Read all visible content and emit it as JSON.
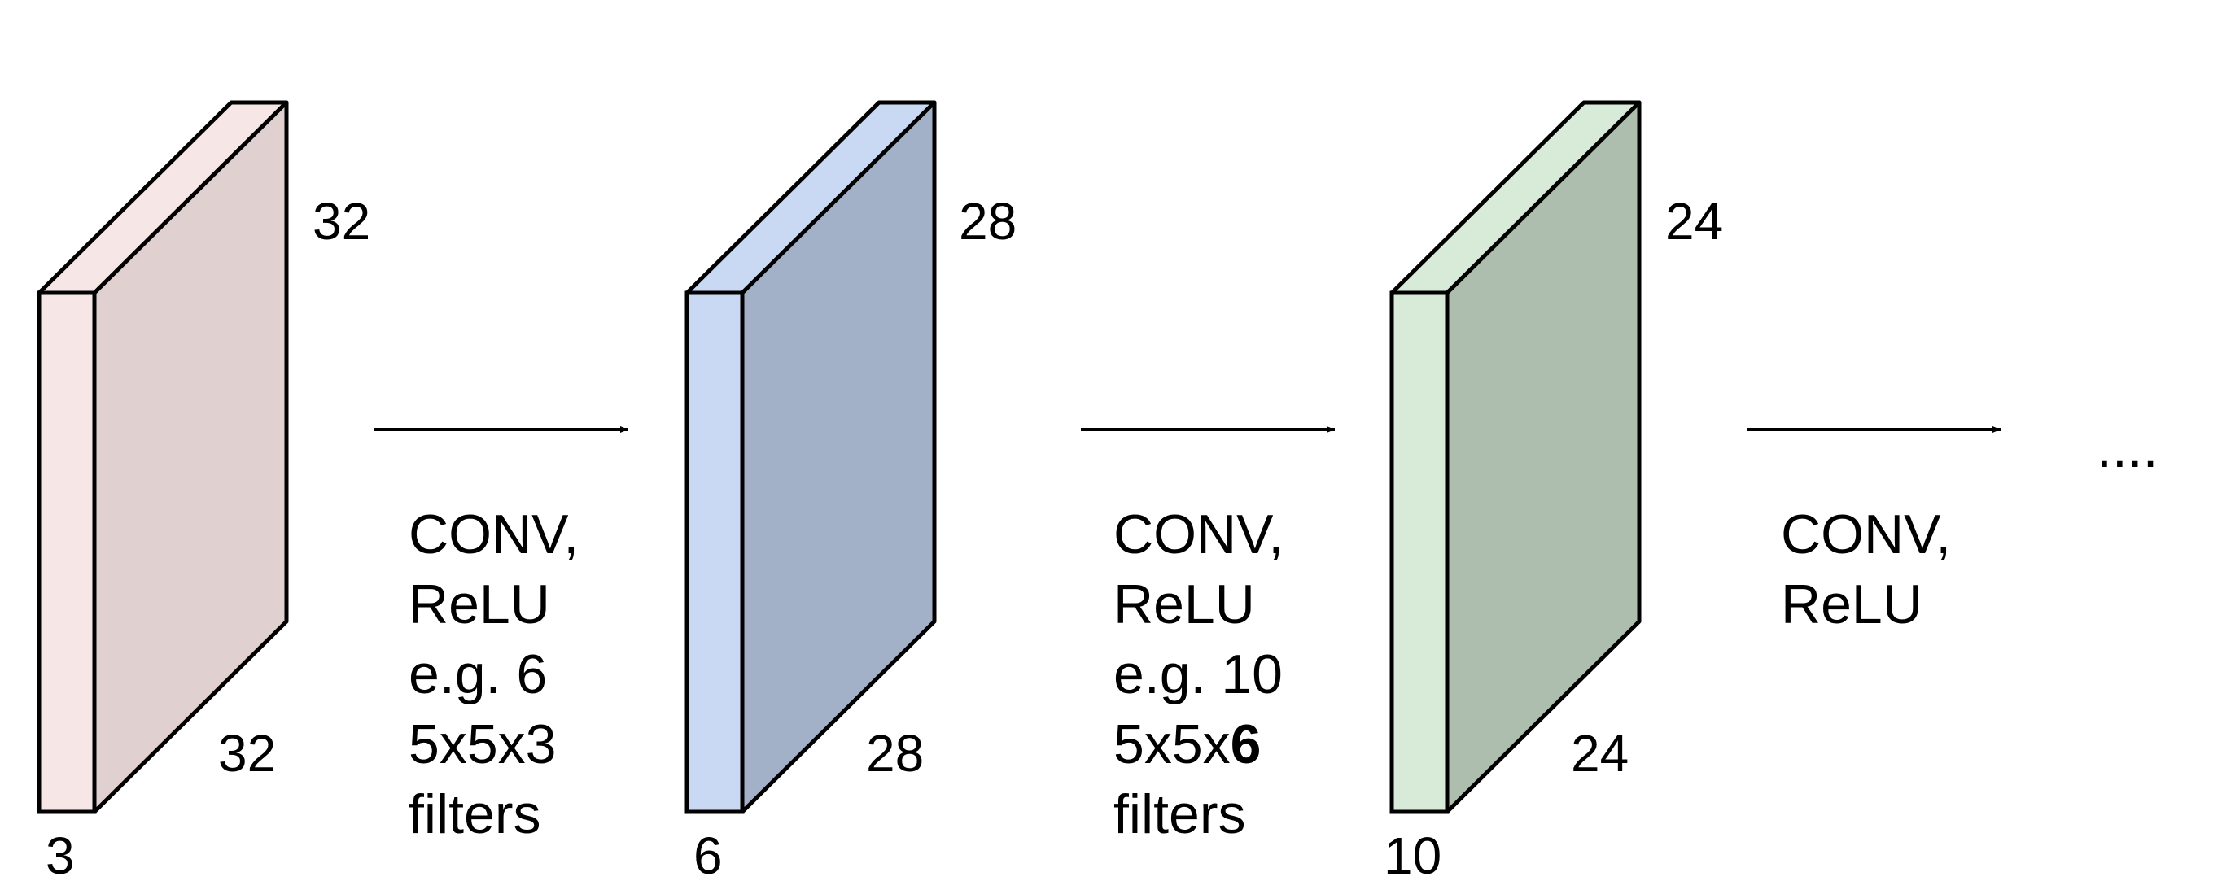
{
  "colors": {
    "volume1_front": "#F6E6E6",
    "volume1_side": "#E0D0D0",
    "volume2_front": "#C9D9F4",
    "volume2_side": "#A2B0C8",
    "volume3_front": "#D8EAD8",
    "volume3_side": "#AEBEAE",
    "stroke": "#000000"
  },
  "volumes": [
    {
      "height": "32",
      "width": "32",
      "depth": "3"
    },
    {
      "height": "28",
      "width": "28",
      "depth": "6"
    },
    {
      "height": "24",
      "width": "24",
      "depth": "10"
    }
  ],
  "layers": [
    {
      "line1": "CONV,",
      "line2": "ReLU",
      "line3": "e.g. 6",
      "line4_prefix": "5x5x3",
      "line4_bold": "",
      "line5": "filters"
    },
    {
      "line1": "CONV,",
      "line2": "ReLU",
      "line3": "e.g. 10",
      "line4_prefix": "5x5x",
      "line4_bold": "6",
      "line5": "filters"
    },
    {
      "line1": "CONV,",
      "line2": "ReLU"
    }
  ],
  "continuation": "...."
}
